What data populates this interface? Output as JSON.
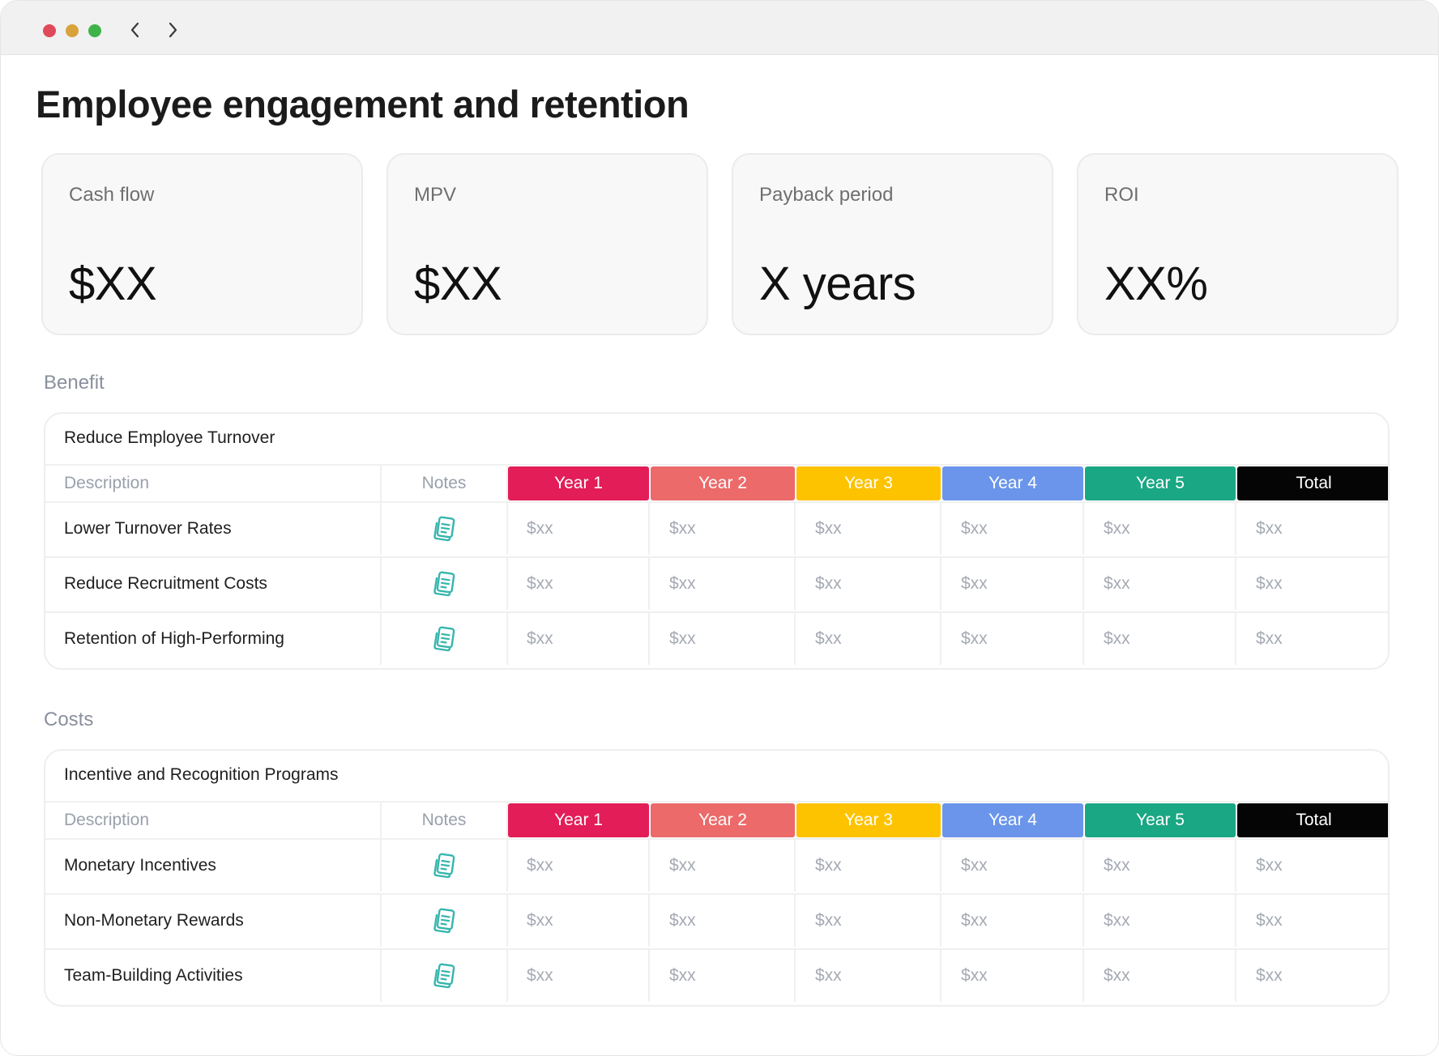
{
  "window": {
    "back_icon": "chevron-left-icon",
    "forward_icon": "chevron-right-icon"
  },
  "page": {
    "title": "Employee engagement and retention"
  },
  "kpis": [
    {
      "label": "Cash flow",
      "value": "$XX"
    },
    {
      "label": "MPV",
      "value": "$XX"
    },
    {
      "label": "Payback period",
      "value": "X years"
    },
    {
      "label": "ROI",
      "value": "XX%"
    }
  ],
  "columns": {
    "description": "Description",
    "notes": "Notes",
    "years": [
      {
        "label": "Year 1",
        "color": "#e21d57"
      },
      {
        "label": "Year 2",
        "color": "#ec6a6a"
      },
      {
        "label": "Year 3",
        "color": "#fdc300"
      },
      {
        "label": "Year 4",
        "color": "#6a95ea"
      },
      {
        "label": "Year 5",
        "color": "#1aa784"
      },
      {
        "label": "Total",
        "color": "#050505"
      }
    ]
  },
  "notes_icon": {
    "name": "notes-icon",
    "color": "#35b6ad"
  },
  "sections": [
    {
      "label": "Benefit",
      "group_title": "Reduce Employee Turnover",
      "rows": [
        {
          "description": "Lower Turnover Rates",
          "values": [
            "$xx",
            "$xx",
            "$xx",
            "$xx",
            "$xx",
            "$xx"
          ]
        },
        {
          "description": "Reduce Recruitment Costs",
          "values": [
            "$xx",
            "$xx",
            "$xx",
            "$xx",
            "$xx",
            "$xx"
          ]
        },
        {
          "description": "Retention of High-Performing",
          "values": [
            "$xx",
            "$xx",
            "$xx",
            "$xx",
            "$xx",
            "$xx"
          ]
        }
      ]
    },
    {
      "label": "Costs",
      "group_title": "Incentive and Recognition Programs",
      "rows": [
        {
          "description": "Monetary Incentives",
          "values": [
            "$xx",
            "$xx",
            "$xx",
            "$xx",
            "$xx",
            "$xx"
          ]
        },
        {
          "description": "Non-Monetary Rewards",
          "values": [
            "$xx",
            "$xx",
            "$xx",
            "$xx",
            "$xx",
            "$xx"
          ]
        },
        {
          "description": "Team-Building Activities",
          "values": [
            "$xx",
            "$xx",
            "$xx",
            "$xx",
            "$xx",
            "$xx"
          ]
        }
      ]
    }
  ]
}
